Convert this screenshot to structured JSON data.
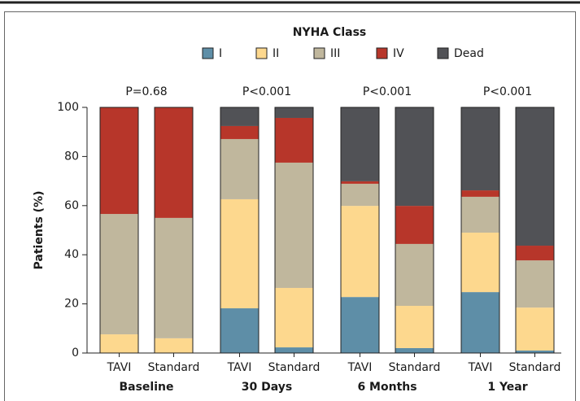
{
  "chart_data": {
    "type": "stacked_bar",
    "legend_title": "NYHA Class",
    "y_label": "Patients (%)",
    "ylim": [
      0,
      100
    ],
    "yticks": [
      0,
      20,
      40,
      60,
      80,
      100
    ],
    "categories": [
      "TAVI",
      "Standard",
      "TAVI",
      "Standard",
      "TAVI",
      "Standard",
      "TAVI",
      "Standard"
    ],
    "groups": [
      {
        "name": "Baseline",
        "p_value": "P=0.68"
      },
      {
        "name": "30 Days",
        "p_value": "P<0.001"
      },
      {
        "name": "6 Months",
        "p_value": "P<0.001"
      },
      {
        "name": "1 Year",
        "p_value": "P<0.001"
      }
    ],
    "series": [
      {
        "name": "I",
        "color": "#5e8ea7",
        "values": [
          0,
          0,
          18.2,
          2.3,
          22.8,
          2,
          24.8,
          1
        ]
      },
      {
        "name": "II",
        "color": "#fdd88e",
        "values": [
          7.6,
          6,
          44.4,
          24.2,
          37.1,
          17.2,
          24.2,
          17.5
        ]
      },
      {
        "name": "III",
        "color": "#c0b79d",
        "values": [
          49,
          49,
          24.5,
          51,
          9,
          25.2,
          14.6,
          19.2
        ]
      },
      {
        "name": "IV",
        "color": "#b7362a",
        "values": [
          43.4,
          45,
          5.3,
          18.2,
          1,
          15.5,
          2.6,
          6
        ]
      },
      {
        "name": "Dead",
        "color": "#515256",
        "values": [
          0,
          0,
          7.6,
          4.3,
          30.1,
          40.1,
          33.8,
          56.3
        ]
      }
    ]
  }
}
